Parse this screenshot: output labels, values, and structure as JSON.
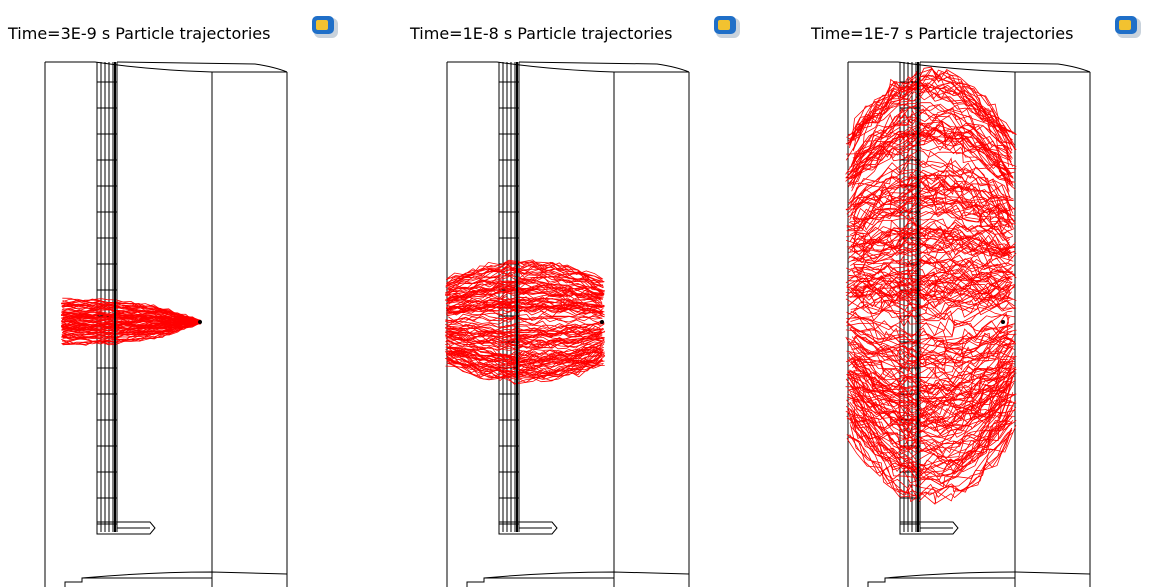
{
  "panels": [
    {
      "time": "Time=3E-9 s",
      "label": "Particle trajectories"
    },
    {
      "time": "Time=1E-8 s",
      "label": "Particle trajectories"
    },
    {
      "time": "Time=1E-7 s",
      "label": "Particle trajectories"
    }
  ]
}
